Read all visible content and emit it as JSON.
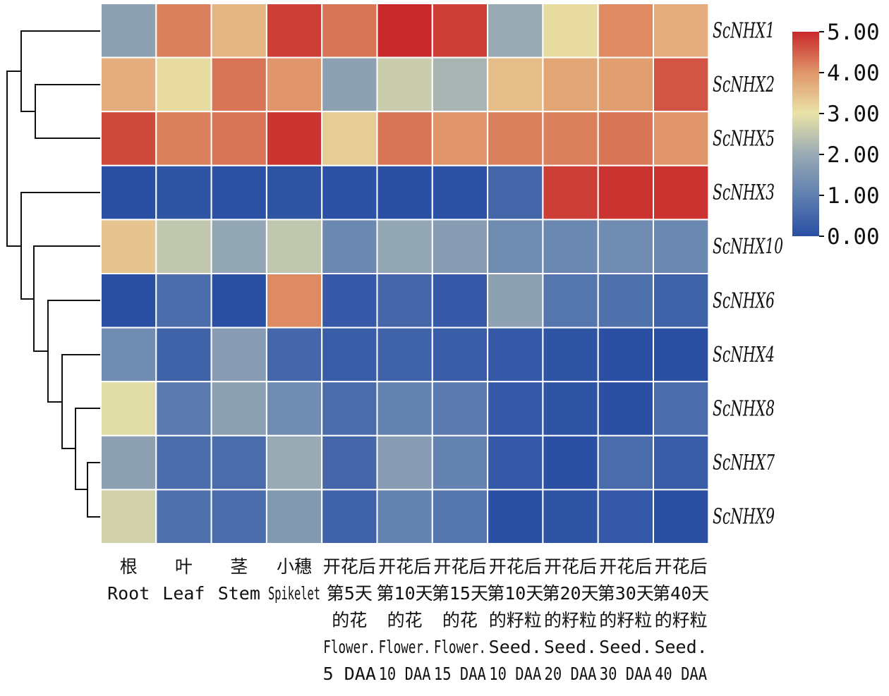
{
  "chart_data": {
    "type": "heatmap",
    "rows": [
      "ScNHX1",
      "ScNHX2",
      "ScNHX5",
      "ScNHX3",
      "ScNHX10",
      "ScNHX6",
      "ScNHX4",
      "ScNHX8",
      "ScNHX7",
      "ScNHX9"
    ],
    "columns": [
      [
        "根",
        "Root"
      ],
      [
        "叶",
        "Leaf"
      ],
      [
        "茎",
        "Stem"
      ],
      [
        "小穗",
        "Spikelet"
      ],
      [
        "开花后",
        "第5天",
        "的花",
        "Flower.",
        "5 DAA"
      ],
      [
        "开花后",
        "第10天",
        "的花",
        "Flower.",
        "10 DAA"
      ],
      [
        "开花后",
        "第15天",
        "的花",
        "Flower.",
        "15 DAA"
      ],
      [
        "开花后",
        "第10天",
        "的籽粒",
        "Seed.",
        "10 DAA"
      ],
      [
        "开花后",
        "第20天",
        "的籽粒",
        "Seed.",
        "20 DAA"
      ],
      [
        "开花后",
        "第30天",
        "的籽粒",
        "Seed.",
        "30 DAA"
      ],
      [
        "开花后",
        "第40天",
        "的籽粒",
        "Seed.",
        "40 DAA"
      ]
    ],
    "values": [
      [
        1.8,
        4.2,
        3.6,
        4.8,
        4.3,
        5.0,
        4.8,
        2.0,
        3.1,
        4.1,
        3.7
      ],
      [
        3.7,
        3.1,
        4.3,
        4.0,
        1.8,
        2.6,
        2.2,
        3.5,
        3.8,
        3.9,
        4.6
      ],
      [
        4.7,
        4.2,
        4.3,
        4.9,
        3.3,
        4.3,
        4.0,
        4.2,
        4.2,
        4.3,
        4.0
      ],
      [
        0.0,
        0.1,
        0.05,
        0.1,
        0.05,
        0.0,
        0.05,
        0.5,
        4.8,
        4.9,
        4.9
      ],
      [
        3.4,
        2.5,
        1.9,
        2.5,
        1.2,
        1.9,
        1.7,
        1.3,
        1.2,
        1.3,
        1.2
      ],
      [
        0.0,
        0.6,
        0.0,
        4.1,
        0.2,
        0.5,
        0.2,
        1.8,
        0.8,
        0.7,
        0.4
      ],
      [
        1.3,
        0.4,
        1.7,
        0.5,
        0.3,
        0.4,
        0.3,
        0.2,
        0.1,
        0.0,
        0.0
      ],
      [
        2.9,
        0.9,
        1.8,
        1.3,
        0.6,
        1.1,
        0.9,
        0.2,
        0.1,
        0.0,
        0.6
      ],
      [
        1.8,
        0.6,
        0.6,
        2.0,
        0.5,
        1.7,
        1.1,
        0.2,
        0.0,
        0.6,
        0.3
      ],
      [
        2.7,
        0.7,
        0.6,
        1.6,
        0.4,
        1.1,
        0.8,
        0.0,
        0.1,
        0.2,
        0.0
      ]
    ],
    "colorbar": {
      "min": 0,
      "max": 5,
      "ticks": [
        "0.00",
        "1.00",
        "2.00",
        "3.00",
        "4.00",
        "5.00"
      ],
      "colors": [
        "#2a4fa3",
        "#5f7fb0",
        "#99aab4",
        "#e9e3a8",
        "#e0966a",
        "#c8282a"
      ]
    },
    "dendrogram": "row clustering tree on left"
  }
}
